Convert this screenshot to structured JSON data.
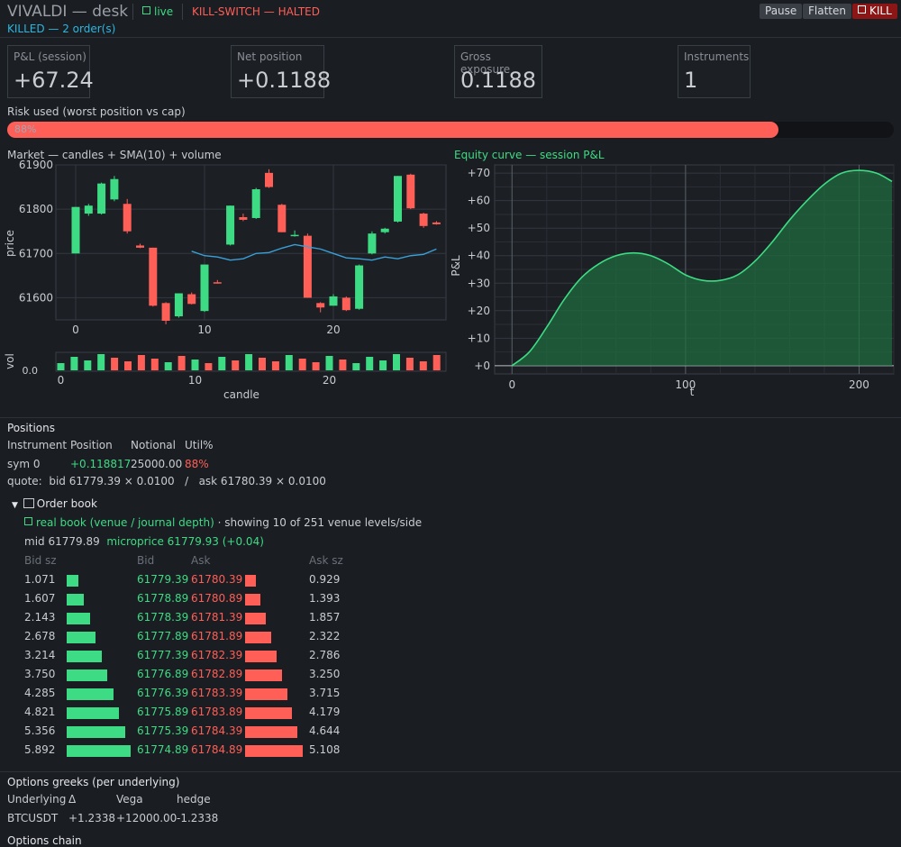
{
  "header": {
    "app_title": "VIVALDI — desk",
    "live_label": "live",
    "killswitch_label": "KILL-SWITCH — HALTED",
    "killed_label": "KILLED — 2 order(s)",
    "pause_label": "Pause",
    "flatten_label": "Flatten",
    "kill_label": "KILL"
  },
  "metrics": [
    {
      "label": "P&L (session)",
      "value": "+67.24"
    },
    {
      "label": "Net position",
      "value": "+0.1188"
    },
    {
      "label": "Gross exposure",
      "value": "0.1188"
    },
    {
      "label": "Instruments",
      "value": "1"
    }
  ],
  "risk": {
    "label": "Risk used (worst position vs cap)",
    "percent": 88,
    "text": "88%"
  },
  "market_chart": {
    "title": "Market — candles + SMA(10) + volume",
    "ylabel": "price",
    "vol_label": "vol",
    "vol_tick": "0.0",
    "xlabel": "candle"
  },
  "equity_chart": {
    "title": "Equity curve — session P&L",
    "ylabel": "P&L",
    "xlabel": "t"
  },
  "chart_data": [
    {
      "type": "candlestick",
      "title": "Market — candles + SMA(10) + volume",
      "ylabel": "price",
      "xlabel": "candle",
      "ylim": [
        61550,
        61900
      ],
      "yticks": [
        61600,
        61700,
        61800,
        61900
      ],
      "xticks": [
        0,
        10,
        20
      ],
      "candles": [
        {
          "o": 61700,
          "h": 61805,
          "l": 61700,
          "c": 61805
        },
        {
          "o": 61790,
          "h": 61812,
          "l": 61785,
          "c": 61808
        },
        {
          "o": 61790,
          "h": 61860,
          "l": 61788,
          "c": 61858
        },
        {
          "o": 61822,
          "h": 61875,
          "l": 61818,
          "c": 61868
        },
        {
          "o": 61812,
          "h": 61823,
          "l": 61745,
          "c": 61750
        },
        {
          "o": 61718,
          "h": 61722,
          "l": 61712,
          "c": 61713
        },
        {
          "o": 61713,
          "h": 61713,
          "l": 61580,
          "c": 61582
        },
        {
          "o": 61588,
          "h": 61590,
          "l": 61540,
          "c": 61548
        },
        {
          "o": 61558,
          "h": 61610,
          "l": 61555,
          "c": 61610
        },
        {
          "o": 61608,
          "h": 61612,
          "l": 61585,
          "c": 61586
        },
        {
          "o": 61570,
          "h": 61675,
          "l": 61568,
          "c": 61675
        },
        {
          "o": 61635,
          "h": 61640,
          "l": 61632,
          "c": 61634
        },
        {
          "o": 61720,
          "h": 61808,
          "l": 61718,
          "c": 61808
        },
        {
          "o": 61782,
          "h": 61790,
          "l": 61773,
          "c": 61776
        },
        {
          "o": 61780,
          "h": 61848,
          "l": 61778,
          "c": 61845
        },
        {
          "o": 61882,
          "h": 61890,
          "l": 61848,
          "c": 61850
        },
        {
          "o": 61810,
          "h": 61812,
          "l": 61748,
          "c": 61748
        },
        {
          "o": 61740,
          "h": 61752,
          "l": 61738,
          "c": 61742
        },
        {
          "o": 61740,
          "h": 61745,
          "l": 61600,
          "c": 61600
        },
        {
          "o": 61588,
          "h": 61590,
          "l": 61567,
          "c": 61578
        },
        {
          "o": 61582,
          "h": 61608,
          "l": 61582,
          "c": 61603
        },
        {
          "o": 61600,
          "h": 61603,
          "l": 61570,
          "c": 61572
        },
        {
          "o": 61575,
          "h": 61675,
          "l": 61573,
          "c": 61673
        },
        {
          "o": 61700,
          "h": 61750,
          "l": 61698,
          "c": 61745
        },
        {
          "o": 61748,
          "h": 61758,
          "l": 61745,
          "c": 61756
        },
        {
          "o": 61772,
          "h": 61875,
          "l": 61770,
          "c": 61875
        },
        {
          "o": 61878,
          "h": 61880,
          "l": 61800,
          "c": 61802
        },
        {
          "o": 61790,
          "h": 61792,
          "l": 61758,
          "c": 61762
        },
        {
          "o": 61770,
          "h": 61773,
          "l": 61765,
          "c": 61766
        }
      ],
      "sma": [
        {
          "x": 9,
          "y": 61705
        },
        {
          "x": 10,
          "y": 61695
        },
        {
          "x": 11,
          "y": 61692
        },
        {
          "x": 12,
          "y": 61685
        },
        {
          "x": 13,
          "y": 61688
        },
        {
          "x": 14,
          "y": 61700
        },
        {
          "x": 15,
          "y": 61702
        },
        {
          "x": 16,
          "y": 61712
        },
        {
          "x": 17,
          "y": 61720
        },
        {
          "x": 18,
          "y": 61715
        },
        {
          "x": 19,
          "y": 61710
        },
        {
          "x": 20,
          "y": 61700
        },
        {
          "x": 21,
          "y": 61690
        },
        {
          "x": 22,
          "y": 61688
        },
        {
          "x": 23,
          "y": 61685
        },
        {
          "x": 24,
          "y": 61692
        },
        {
          "x": 25,
          "y": 61688
        },
        {
          "x": 26,
          "y": 61695
        },
        {
          "x": 27,
          "y": 61698
        },
        {
          "x": 28,
          "y": 61710
        }
      ],
      "volume": {
        "ylabel": "vol",
        "yticks": [
          0.0
        ],
        "xticks": [
          0,
          10,
          20
        ]
      }
    },
    {
      "type": "area",
      "title": "Equity curve — session P&L",
      "xlabel": "t",
      "ylabel": "P&L",
      "xlim": [
        -10,
        220
      ],
      "ylim": [
        -3,
        73
      ],
      "xticks": [
        0,
        100,
        200
      ],
      "yticks": [
        "+0",
        "+10",
        "+20",
        "+30",
        "+40",
        "+50",
        "+60",
        "+70"
      ],
      "x": [
        0,
        10,
        20,
        30,
        40,
        50,
        60,
        70,
        80,
        90,
        100,
        110,
        120,
        130,
        140,
        150,
        160,
        170,
        180,
        190,
        200,
        210,
        219
      ],
      "y": [
        0,
        5,
        14,
        24,
        32,
        37,
        40,
        41,
        40,
        37,
        33,
        31,
        31,
        33,
        38,
        45,
        53,
        60,
        66,
        70,
        71,
        70,
        67
      ]
    }
  ],
  "positions": {
    "heading": "Positions",
    "columns": [
      "Instrument",
      "Position",
      "Notional",
      "Util%"
    ],
    "rows": [
      {
        "instrument": "sym 0",
        "position": "+0.118817",
        "notional": "25000.00",
        "util": "88%"
      }
    ],
    "quote": "quote:  bid 61779.39 × 0.0100   /   ask 61780.39 × 0.0100"
  },
  "order_book": {
    "heading": "Order book",
    "source": "real book (venue / journal depth)",
    "showing": "· showing 10 of 251 venue levels/side",
    "mid": "mid 61779.89",
    "microprice": "microprice 61779.93 (+0.04)",
    "columns": [
      "Bid sz",
      "Bid",
      "Ask",
      "Ask sz"
    ],
    "levels": [
      {
        "bid_sz": "1.071",
        "bid": "61779.39",
        "ask": "61780.39",
        "ask_sz": "0.929",
        "bq": 1.071,
        "aq": 0.929
      },
      {
        "bid_sz": "1.607",
        "bid": "61778.89",
        "ask": "61780.89",
        "ask_sz": "1.393",
        "bq": 1.607,
        "aq": 1.393
      },
      {
        "bid_sz": "2.143",
        "bid": "61778.39",
        "ask": "61781.39",
        "ask_sz": "1.857",
        "bq": 2.143,
        "aq": 1.857
      },
      {
        "bid_sz": "2.678",
        "bid": "61777.89",
        "ask": "61781.89",
        "ask_sz": "2.322",
        "bq": 2.678,
        "aq": 2.322
      },
      {
        "bid_sz": "3.214",
        "bid": "61777.39",
        "ask": "61782.39",
        "ask_sz": "2.786",
        "bq": 3.214,
        "aq": 2.786
      },
      {
        "bid_sz": "3.750",
        "bid": "61776.89",
        "ask": "61782.89",
        "ask_sz": "3.250",
        "bq": 3.75,
        "aq": 3.25
      },
      {
        "bid_sz": "4.285",
        "bid": "61776.39",
        "ask": "61783.39",
        "ask_sz": "3.715",
        "bq": 4.285,
        "aq": 3.715
      },
      {
        "bid_sz": "4.821",
        "bid": "61775.89",
        "ask": "61783.89",
        "ask_sz": "4.179",
        "bq": 4.821,
        "aq": 4.179
      },
      {
        "bid_sz": "5.356",
        "bid": "61775.39",
        "ask": "61784.39",
        "ask_sz": "4.644",
        "bq": 5.356,
        "aq": 4.644
      },
      {
        "bid_sz": "5.892",
        "bid": "61774.89",
        "ask": "61784.89",
        "ask_sz": "5.108",
        "bq": 5.892,
        "aq": 5.108
      }
    ]
  },
  "greeks": {
    "heading": "Options greeks (per underlying)",
    "columns": [
      "Underlying",
      "Δ",
      "Vega",
      "hedge"
    ],
    "rows": [
      {
        "underlying": "BTCUSDT",
        "delta": "+1.2338",
        "vega": "+12000.00",
        "hedge": "-1.2338"
      }
    ]
  },
  "options_chain": {
    "heading": "Options chain"
  },
  "colors": {
    "green": "#3ddc84",
    "red": "#ff5f57",
    "cyan": "#2ab7e0",
    "sma": "#3aa0d8",
    "bg": "#1a1d22"
  }
}
